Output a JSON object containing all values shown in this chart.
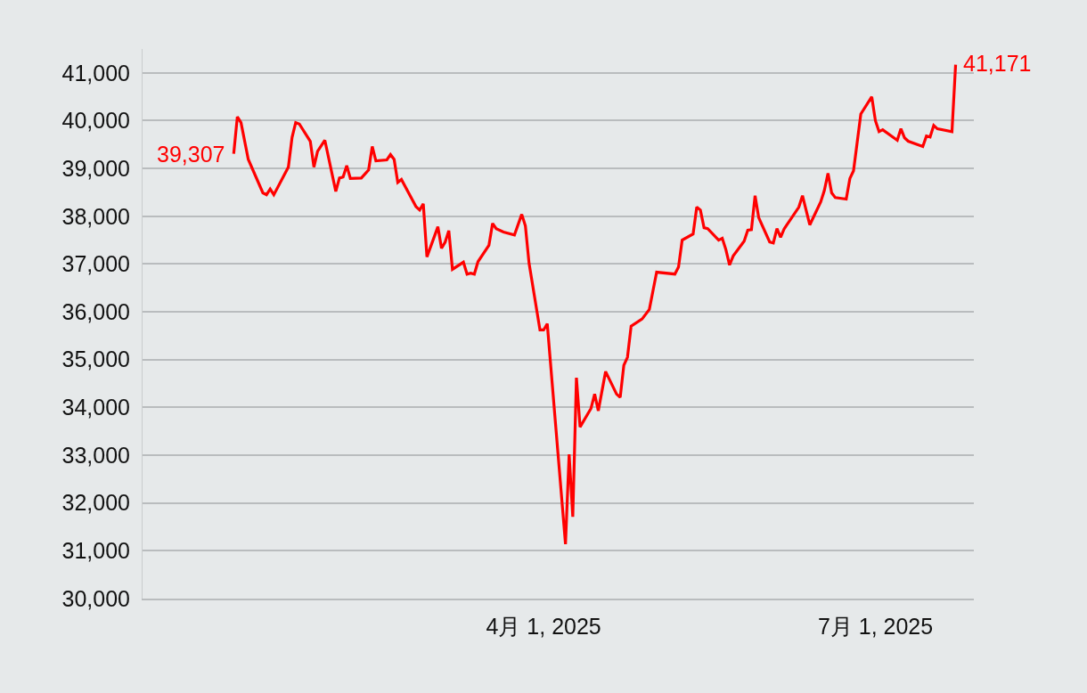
{
  "chart_data": {
    "type": "line",
    "x": [
      "2025-01-06",
      "2025-01-07",
      "2025-01-08",
      "2025-01-10",
      "2025-01-14",
      "2025-01-15",
      "2025-01-16",
      "2025-01-17",
      "2025-01-21",
      "2025-01-22",
      "2025-01-23",
      "2025-01-24",
      "2025-01-27",
      "2025-01-28",
      "2025-01-29",
      "2025-01-31",
      "2025-02-03",
      "2025-02-04",
      "2025-02-05",
      "2025-02-06",
      "2025-02-07",
      "2025-02-10",
      "2025-02-12",
      "2025-02-13",
      "2025-02-14",
      "2025-02-17",
      "2025-02-18",
      "2025-02-19",
      "2025-02-20",
      "2025-02-21",
      "2025-02-25",
      "2025-02-26",
      "2025-02-27",
      "2025-02-28",
      "2025-03-03",
      "2025-03-04",
      "2025-03-05",
      "2025-03-06",
      "2025-03-07",
      "2025-03-10",
      "2025-03-11",
      "2025-03-12",
      "2025-03-13",
      "2025-03-14",
      "2025-03-17",
      "2025-03-18",
      "2025-03-19",
      "2025-03-21",
      "2025-03-24",
      "2025-03-26",
      "2025-03-27",
      "2025-03-28",
      "2025-03-31",
      "2025-04-01",
      "2025-04-02",
      "2025-04-07",
      "2025-04-08",
      "2025-04-09",
      "2025-04-10",
      "2025-04-11",
      "2025-04-14",
      "2025-04-15",
      "2025-04-16",
      "2025-04-18",
      "2025-04-21",
      "2025-04-22",
      "2025-04-23",
      "2025-04-24",
      "2025-04-25",
      "2025-04-28",
      "2025-04-30",
      "2025-05-02",
      "2025-05-07",
      "2025-05-08",
      "2025-05-09",
      "2025-05-12",
      "2025-05-13",
      "2025-05-14",
      "2025-05-15",
      "2025-05-16",
      "2025-05-19",
      "2025-05-20",
      "2025-05-21",
      "2025-05-22",
      "2025-05-23",
      "2025-05-26",
      "2025-05-27",
      "2025-05-28",
      "2025-05-29",
      "2025-05-30",
      "2025-06-02",
      "2025-06-03",
      "2025-06-04",
      "2025-06-05",
      "2025-06-06",
      "2025-06-10",
      "2025-06-11",
      "2025-06-13",
      "2025-06-16",
      "2025-06-17",
      "2025-06-18",
      "2025-06-19",
      "2025-06-20",
      "2025-06-23",
      "2025-06-24",
      "2025-06-25",
      "2025-06-27",
      "2025-06-30",
      "2025-07-01",
      "2025-07-02",
      "2025-07-03",
      "2025-07-07",
      "2025-07-08",
      "2025-07-09",
      "2025-07-10",
      "2025-07-14",
      "2025-07-15",
      "2025-07-16",
      "2025-07-17",
      "2025-07-18",
      "2025-07-22",
      "2025-07-23"
    ],
    "series": [
      {
        "color": "#ff0000",
        "values": [
          39307,
          40080,
          39960,
          39190,
          38490,
          38450,
          38570,
          38450,
          39030,
          39650,
          39960,
          39930,
          39570,
          39030,
          39360,
          39590,
          38520,
          38800,
          38820,
          39060,
          38790,
          38800,
          38970,
          39460,
          39160,
          39180,
          39290,
          39190,
          38710,
          38770,
          38200,
          38130,
          38260,
          37150,
          37780,
          37330,
          37460,
          37700,
          36890,
          37040,
          36790,
          36810,
          36790,
          37050,
          37390,
          37850,
          37740,
          37670,
          37610,
          38040,
          37800,
          37020,
          35620,
          35620,
          35750,
          31140,
          33020,
          31710,
          34620,
          33590,
          33980,
          34280,
          33930,
          34750,
          34280,
          34210,
          34880,
          35050,
          35700,
          35850,
          36050,
          36830,
          36790,
          36940,
          37500,
          37630,
          38190,
          38130,
          37760,
          37740,
          37500,
          37540,
          37300,
          36980,
          37170,
          37480,
          37710,
          37720,
          38430,
          37970,
          37460,
          37440,
          37740,
          37560,
          37740,
          38190,
          38430,
          37820,
          38300,
          38540,
          38900,
          38490,
          38390,
          38360,
          38790,
          38950,
          40140,
          40500,
          40000,
          39770,
          39810,
          39590,
          39830,
          39640,
          39570,
          39460,
          39680,
          39660,
          39900,
          39830,
          39770,
          41171
        ],
        "value_labels": [
          "39,307",
          null,
          null,
          null,
          null,
          null,
          null,
          null,
          null,
          null,
          null,
          null,
          null,
          null,
          null,
          null,
          null,
          null,
          null,
          null,
          null,
          null,
          null,
          null,
          null,
          null,
          null,
          null,
          null,
          null,
          null,
          null,
          null,
          null,
          null,
          null,
          null,
          null,
          null,
          null,
          null,
          null,
          null,
          null,
          null,
          null,
          null,
          null,
          null,
          null,
          null,
          null,
          null,
          null,
          null,
          null,
          null,
          null,
          null,
          null,
          null,
          null,
          null,
          null,
          null,
          null,
          null,
          null,
          null,
          null,
          null,
          null,
          null,
          null,
          null,
          null,
          null,
          null,
          null,
          null,
          null,
          null,
          null,
          null,
          null,
          null,
          null,
          null,
          null,
          null,
          null,
          null,
          null,
          null,
          null,
          null,
          null,
          null,
          null,
          null,
          null,
          null,
          null,
          null,
          null,
          null,
          null,
          null,
          null,
          null,
          null,
          null,
          null,
          null,
          null,
          null,
          null,
          null,
          null,
          null,
          null,
          "41,171"
        ]
      }
    ],
    "xlim": [
      "2024-12-12",
      "2025-07-28"
    ],
    "xticks": [
      {
        "value": "2025-04-01",
        "label": "4月 1, 2025"
      },
      {
        "value": "2025-07-01",
        "label": "7月 1, 2025"
      }
    ],
    "ylim": [
      30000,
      41500
    ],
    "yticks": [
      {
        "value": 30000,
        "label": "30,000"
      },
      {
        "value": 31000,
        "label": "31,000"
      },
      {
        "value": 32000,
        "label": "32,000"
      },
      {
        "value": 33000,
        "label": "33,000"
      },
      {
        "value": 34000,
        "label": "34,000"
      },
      {
        "value": 35000,
        "label": "35,000"
      },
      {
        "value": 36000,
        "label": "36,000"
      },
      {
        "value": 37000,
        "label": "37,000"
      },
      {
        "value": 38000,
        "label": "38,000"
      },
      {
        "value": 39000,
        "label": "39,000"
      },
      {
        "value": 40000,
        "label": "40,000"
      },
      {
        "value": 41000,
        "label": "41,000"
      }
    ],
    "grid": "y",
    "marker": "none",
    "line_style": "solid"
  }
}
